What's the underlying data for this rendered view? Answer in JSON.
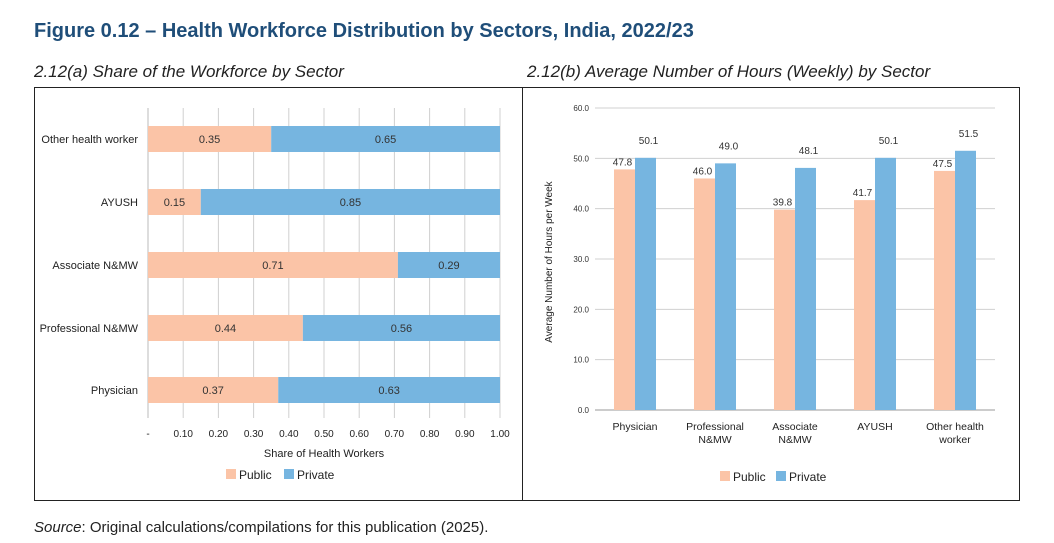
{
  "figure_title": "Figure 0.12 – Health Workforce Distribution by Sectors, India, 2022/23",
  "source": {
    "label": "Source",
    "text": ": Original calculations/compilations for this publication (2025)."
  },
  "colors": {
    "public": "#fbc4a7",
    "private": "#76b5e0",
    "grid": "#d0d0d0",
    "title": "#1f4e79"
  },
  "chart_data": [
    {
      "type": "bar",
      "orientation": "horizontal",
      "stacked": true,
      "title": "2.12(a) Share of the Workforce by Sector",
      "xlabel": "Share of Health Workers",
      "ylabel": "",
      "xlim": [
        0,
        1.0
      ],
      "x_ticks": [
        "-",
        "0.10",
        "0.20",
        "0.30",
        "0.40",
        "0.50",
        "0.60",
        "0.70",
        "0.80",
        "0.90",
        "1.00"
      ],
      "categories": [
        "Other health worker",
        "AYUSH",
        "Associate N&MW",
        "Professional N&MW",
        "Physician"
      ],
      "series": [
        {
          "name": "Public",
          "values": [
            0.35,
            0.15,
            0.71,
            0.44,
            0.37
          ],
          "labels": [
            "0.35",
            "0.15",
            "0.71",
            "0.44",
            "0.37"
          ]
        },
        {
          "name": "Private",
          "values": [
            0.65,
            0.85,
            0.29,
            0.56,
            0.63
          ],
          "labels": [
            "0.65",
            "0.85",
            "0.29",
            "0.56",
            "0.63"
          ]
        }
      ],
      "legend": [
        "Public",
        "Private"
      ],
      "legend_position": "bottom",
      "grid": true
    },
    {
      "type": "bar",
      "orientation": "vertical",
      "stacked": false,
      "title": "2.12(b) Average Number of Hours (Weekly) by Sector",
      "xlabel": "",
      "ylabel": "Average Number of Hours per Week",
      "ylim": [
        0,
        60
      ],
      "y_ticks": [
        "0.0",
        "10.0",
        "20.0",
        "30.0",
        "40.0",
        "50.0",
        "60.0"
      ],
      "categories": [
        [
          "Physician"
        ],
        [
          "Professional",
          "N&MW"
        ],
        [
          "Associate",
          "N&MW"
        ],
        [
          "AYUSH"
        ],
        [
          "Other health",
          "worker"
        ]
      ],
      "series": [
        {
          "name": "Public",
          "values": [
            47.8,
            46.0,
            39.8,
            41.7,
            47.5
          ],
          "labels": [
            "47.8",
            "46.0",
            "39.8",
            "41.7",
            "47.5"
          ]
        },
        {
          "name": "Private",
          "values": [
            50.1,
            49.0,
            48.1,
            50.1,
            51.5
          ],
          "labels": [
            "50.1",
            "49.0",
            "48.1",
            "50.1",
            "51.5"
          ]
        }
      ],
      "legend": [
        "Public",
        "Private"
      ],
      "legend_position": "bottom",
      "grid": true
    }
  ]
}
